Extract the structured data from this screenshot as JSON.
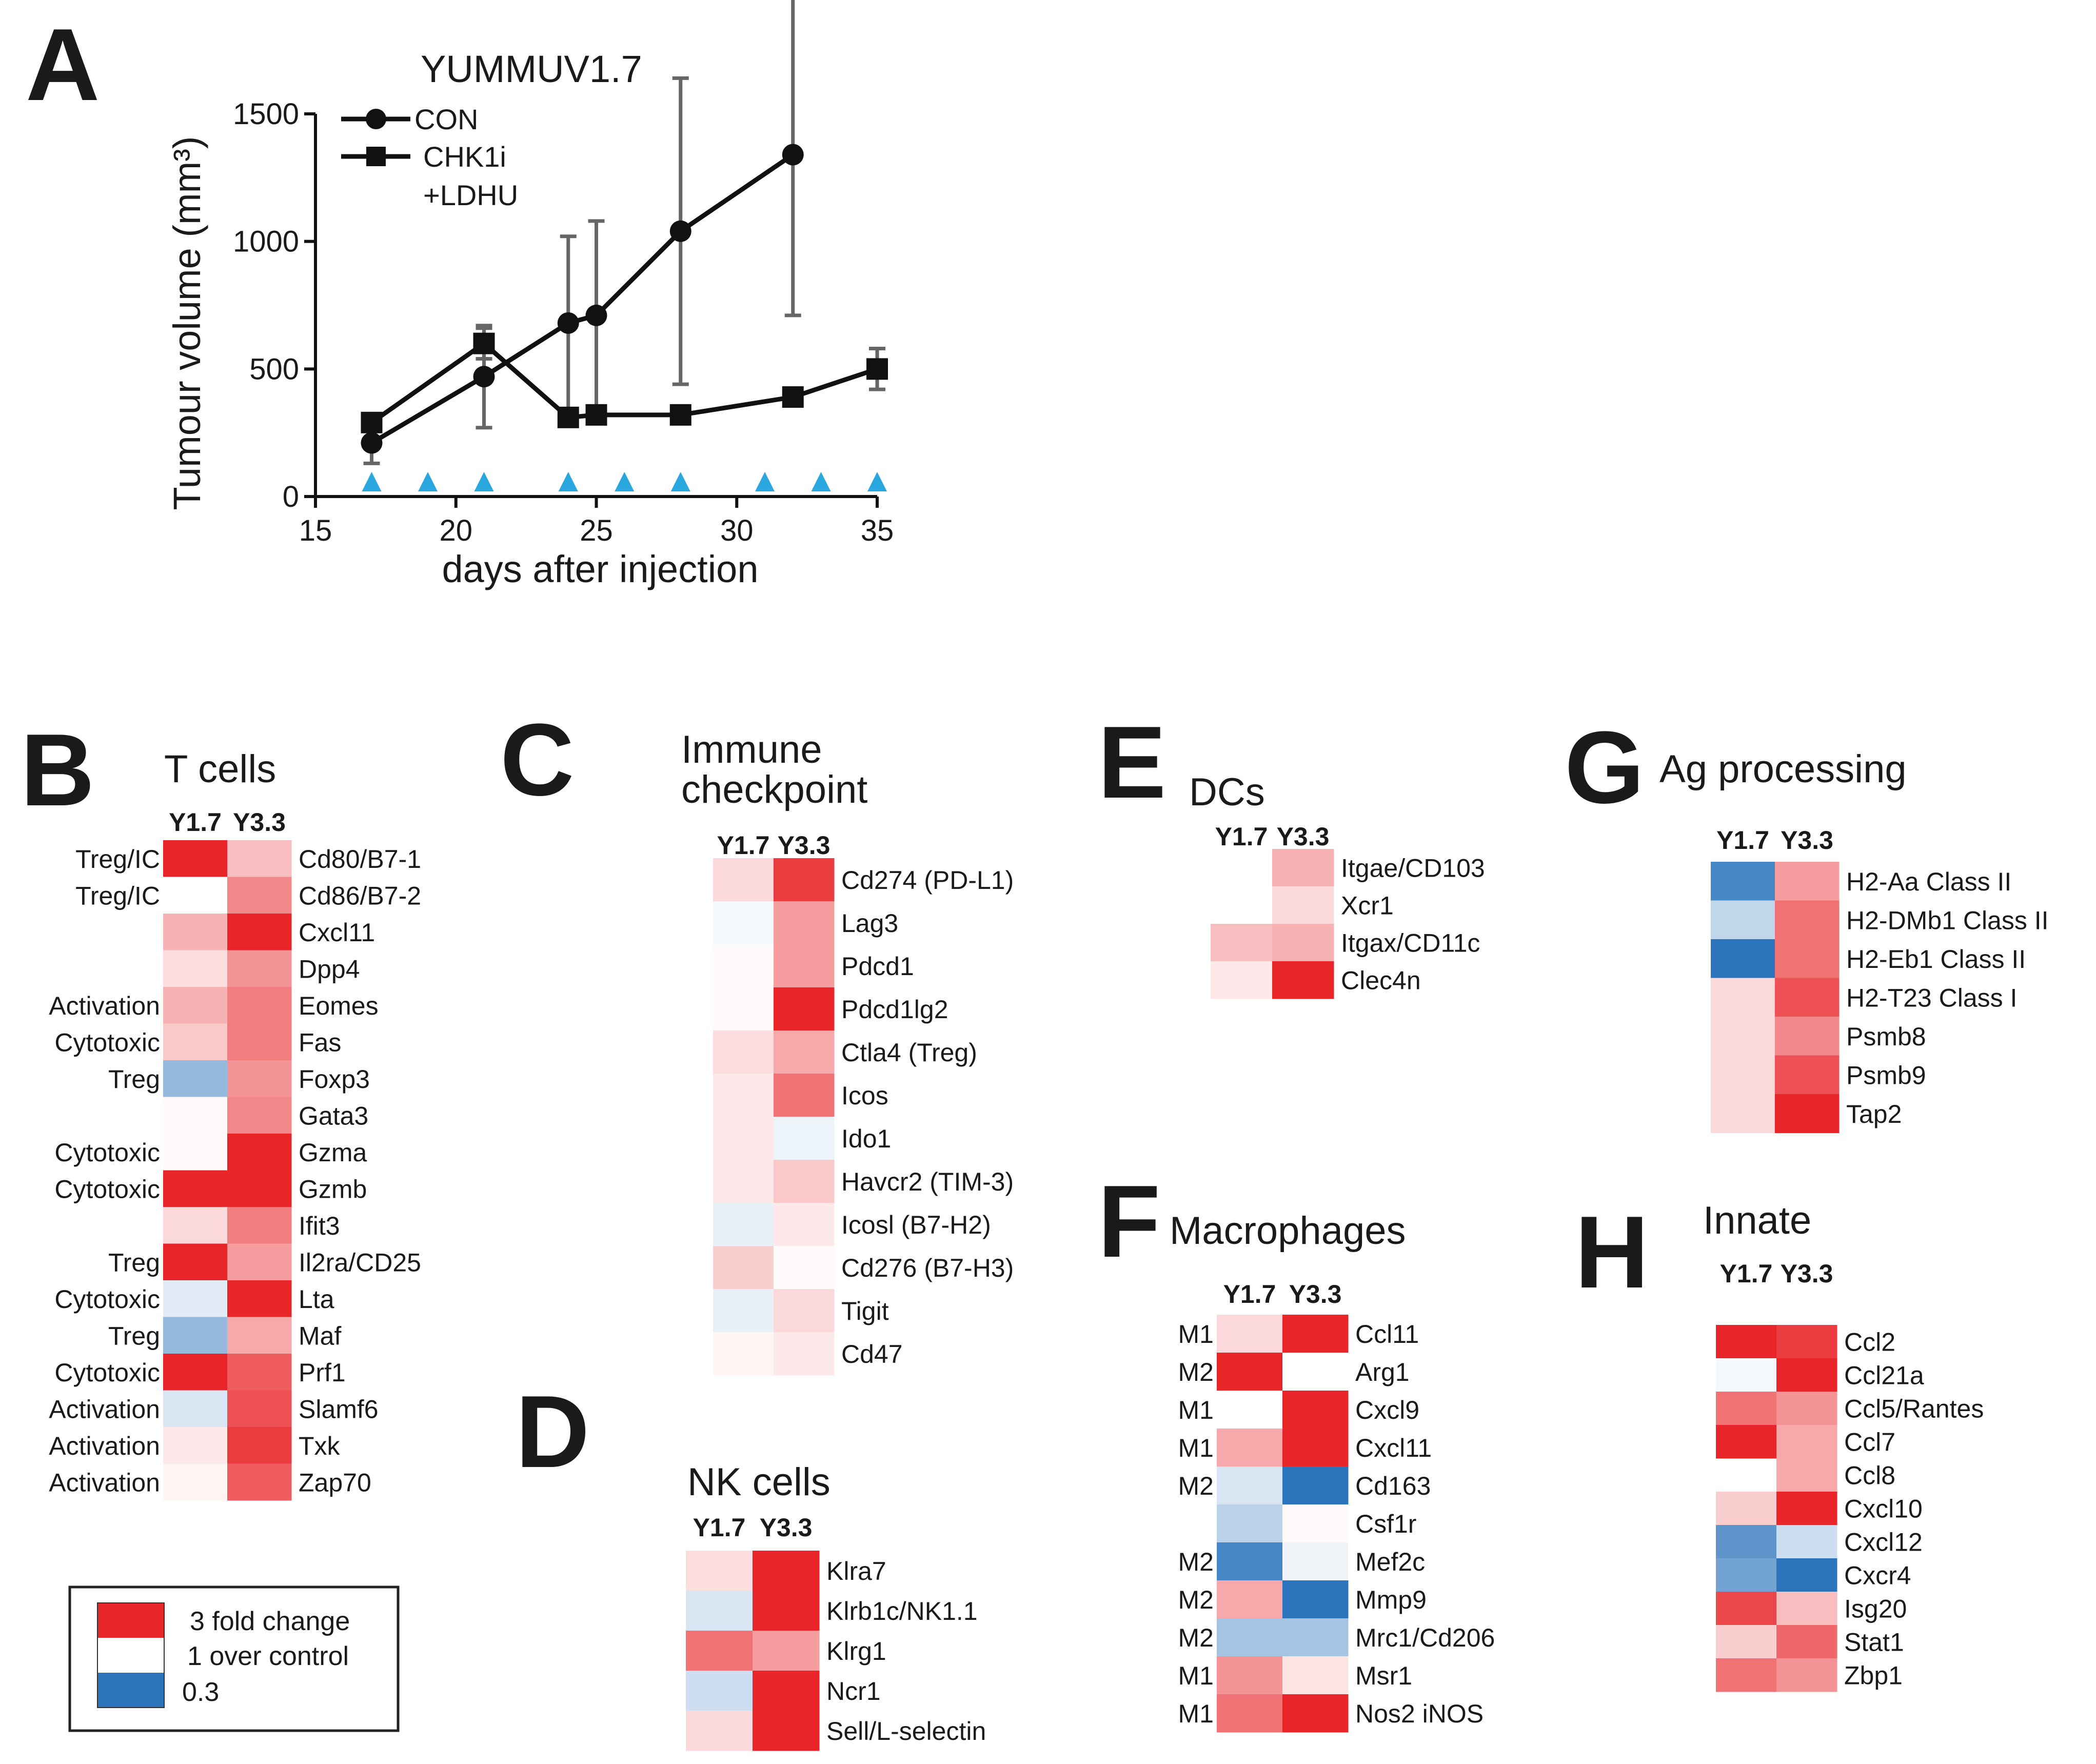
{
  "colors": {
    "red": "#e8262a",
    "white": "#ffffff",
    "blue": "#2b74bb",
    "series": "#111111",
    "error": "#666666",
    "dose": "#2aa7df"
  },
  "panelA": {
    "letter": "A",
    "chart_data": {
      "type": "line",
      "title": "YUMMUV1.7",
      "xlabel": "days after injection",
      "ylabel": "Tumour volume (mm³)",
      "xlim": [
        15,
        35
      ],
      "ylim": [
        0,
        1500
      ],
      "xticks": [
        15,
        20,
        25,
        30,
        35
      ],
      "yticks": [
        0,
        500,
        1000,
        1500
      ],
      "series": [
        {
          "name": "CON",
          "marker": "circle",
          "x": [
            17,
            21,
            24,
            25,
            28,
            32
          ],
          "y": [
            210,
            470,
            680,
            710,
            1040,
            1340
          ],
          "err": [
            80,
            200,
            340,
            370,
            600,
            630
          ]
        },
        {
          "name": "CHK1i",
          "name2": "+LDHU",
          "marker": "square",
          "x": [
            17,
            21,
            24,
            25,
            28,
            32,
            35
          ],
          "y": [
            290,
            600,
            310,
            320,
            320,
            390,
            500
          ],
          "err": [
            20,
            60,
            20,
            20,
            20,
            20,
            80
          ]
        }
      ],
      "dose_days": [
        17,
        19,
        21,
        24,
        26,
        28,
        31,
        33,
        35
      ]
    }
  },
  "legend": {
    "items": [
      "3 fold change",
      "1 over control",
      "0.3"
    ],
    "values": [
      3,
      1,
      0.3
    ]
  },
  "panelB": {
    "letter": "B",
    "title": "T cells",
    "cols": [
      "Y1.7",
      "Y3.3"
    ],
    "rows": [
      {
        "gene": "Cd80/B7-1",
        "cat": "Treg/IC",
        "v": [
          3,
          1.6
        ]
      },
      {
        "gene": "Cd86/B7-2",
        "cat": "Treg/IC",
        "v": [
          1,
          2.1
        ]
      },
      {
        "gene": "Cxcl11",
        "cat": "",
        "v": [
          1.7,
          3
        ]
      },
      {
        "gene": "Dpp4",
        "cat": "",
        "v": [
          1.3,
          2
        ]
      },
      {
        "gene": "Eomes",
        "cat": "Activation",
        "v": [
          1.7,
          2.2
        ]
      },
      {
        "gene": "Fas",
        "cat": "Cytotoxic",
        "v": [
          1.5,
          2.2
        ]
      },
      {
        "gene": "Foxp3",
        "cat": "Treg",
        "v": [
          0.55,
          2
        ]
      },
      {
        "gene": "Gata3",
        "cat": "",
        "v": [
          1.05,
          2.1
        ]
      },
      {
        "gene": "Gzma",
        "cat": "Cytotoxic",
        "v": [
          1.05,
          3
        ]
      },
      {
        "gene": "Gzmb",
        "cat": "Cytotoxic",
        "v": [
          3,
          3
        ]
      },
      {
        "gene": "Ifit3",
        "cat": "",
        "v": [
          1.35,
          2.2
        ]
      },
      {
        "gene": "Il2ra/CD25",
        "cat": "Treg",
        "v": [
          3,
          1.9
        ]
      },
      {
        "gene": "Lta",
        "cat": "Cytotoxic",
        "v": [
          0.85,
          3
        ]
      },
      {
        "gene": "Maf",
        "cat": "Treg",
        "v": [
          0.55,
          1.8
        ]
      },
      {
        "gene": "Prf1",
        "cat": "Cytotoxic",
        "v": [
          3,
          2.5
        ]
      },
      {
        "gene": "Slamf6",
        "cat": "Activation",
        "v": [
          0.8,
          2.6
        ]
      },
      {
        "gene": "Txk",
        "cat": "Activation",
        "v": [
          1.2,
          2.8
        ]
      },
      {
        "gene": "Zap70",
        "cat": "Activation",
        "v": [
          1.1,
          2.5
        ]
      }
    ]
  },
  "panelC": {
    "letter": "C",
    "title1": "Immune",
    "title2": "checkpoint",
    "cols": [
      "Y1.7",
      "Y3.3"
    ],
    "rows": [
      {
        "gene": "Cd274 (PD-L1)",
        "v": [
          1.35,
          2.8
        ]
      },
      {
        "gene": "Lag3",
        "v": [
          0.95,
          1.9
        ]
      },
      {
        "gene": "Pdcd1",
        "v": [
          1.05,
          1.9
        ]
      },
      {
        "gene": "Pdcd1lg2",
        "v": [
          1.05,
          3
        ]
      },
      {
        "gene": "Ctla4 (Treg)",
        "v": [
          1.3,
          1.8
        ]
      },
      {
        "gene": "Icos",
        "v": [
          1.2,
          2.3
        ]
      },
      {
        "gene": "Ido1",
        "v": [
          1.2,
          0.9
        ]
      },
      {
        "gene": "Havcr2 (TIM-3)",
        "v": [
          1.2,
          1.5
        ]
      },
      {
        "gene": "Icosl (B7-H2)",
        "v": [
          0.88,
          1.2
        ]
      },
      {
        "gene": "Cd276 (B7-H3)",
        "v": [
          1.45,
          1.05
        ]
      },
      {
        "gene": "Tigit",
        "v": [
          0.88,
          1.35
        ]
      },
      {
        "gene": "Cd47",
        "v": [
          1.1,
          1.2
        ]
      }
    ]
  },
  "panelD": {
    "letter": "D",
    "title": "NK cells",
    "cols": [
      "Y1.7",
      "Y3.3"
    ],
    "rows": [
      {
        "gene": "Klra7",
        "v": [
          1.3,
          3
        ]
      },
      {
        "gene": "Klrb1c/NK1.1",
        "v": [
          0.8,
          3
        ]
      },
      {
        "gene": "Klrg1",
        "v": [
          2.3,
          1.9
        ]
      },
      {
        "gene": "Ncr1",
        "v": [
          0.75,
          3
        ]
      },
      {
        "gene": "Sell/L-selectin",
        "v": [
          1.35,
          3
        ]
      }
    ]
  },
  "panelE": {
    "letter": "E",
    "title": "DCs",
    "cols": [
      "Y1.7",
      "Y3.3"
    ],
    "rows": [
      {
        "gene": "Itgae/CD103",
        "v": [
          null,
          1.7
        ]
      },
      {
        "gene": "Xcr1",
        "v": [
          null,
          1.35
        ]
      },
      {
        "gene": "Itgax/CD11c",
        "v": [
          1.6,
          1.7
        ]
      },
      {
        "gene": "Clec4n",
        "v": [
          1.2,
          3
        ]
      }
    ]
  },
  "panelF": {
    "letter": "F",
    "title": "Macrophages",
    "cols": [
      "Y1.7",
      "Y3.3"
    ],
    "rows": [
      {
        "gene": "Ccl11",
        "cat": "M1",
        "v": [
          1.35,
          3
        ]
      },
      {
        "gene": "Arg1",
        "cat": "M2",
        "v": [
          3,
          1
        ]
      },
      {
        "gene": "Cxcl9",
        "cat": "M1",
        "v": [
          1,
          3
        ]
      },
      {
        "gene": "Cxcl11",
        "cat": "M1",
        "v": [
          1.8,
          3
        ]
      },
      {
        "gene": "Cd163",
        "cat": "M2",
        "v": [
          0.8,
          0.3
        ]
      },
      {
        "gene": "Csf1r",
        "cat": "",
        "v": [
          0.68,
          1.05
        ]
      },
      {
        "gene": "Mef2c",
        "cat": "M2",
        "v": [
          0.35,
          0.92
        ]
      },
      {
        "gene": "Mmp9",
        "cat": "M2",
        "v": [
          1.8,
          0.3
        ]
      },
      {
        "gene": "Mrc1/Cd206",
        "cat": "M2",
        "v": [
          0.6,
          0.6
        ]
      },
      {
        "gene": "Msr1",
        "cat": "M1",
        "v": [
          2,
          1.25
        ]
      },
      {
        "gene": "Nos2 iNOS",
        "cat": "M1",
        "v": [
          2.3,
          3
        ]
      }
    ]
  },
  "panelG": {
    "letter": "G",
    "title": "Ag processing",
    "cols": [
      "Y1.7",
      "Y3.3"
    ],
    "rows": [
      {
        "gene": "H2-Aa Class II",
        "v": [
          0.35,
          1.9
        ]
      },
      {
        "gene": "H2-DMb1 Class II",
        "v": [
          0.7,
          2.3
        ]
      },
      {
        "gene": "H2-Eb1 Class II",
        "v": [
          0.3,
          2.3
        ]
      },
      {
        "gene": "H2-T23 Class I",
        "v": [
          1.35,
          2.6
        ]
      },
      {
        "gene": "Psmb8",
        "v": [
          1.35,
          2.1
        ]
      },
      {
        "gene": "Psmb9",
        "v": [
          1.35,
          2.6
        ]
      },
      {
        "gene": "Tap2",
        "v": [
          1.35,
          3
        ]
      }
    ]
  },
  "panelH": {
    "letter": "H",
    "title": "Innate",
    "cols": [
      "Y1.7",
      "Y3.3"
    ],
    "rows": [
      {
        "gene": "Ccl2",
        "v": [
          3,
          2.8
        ]
      },
      {
        "gene": "Ccl21a",
        "v": [
          0.95,
          3
        ]
      },
      {
        "gene": "Ccl5/Rantes",
        "v": [
          2.3,
          2
        ]
      },
      {
        "gene": "Ccl7",
        "v": [
          3,
          1.8
        ]
      },
      {
        "gene": "Ccl8",
        "v": [
          null,
          1.8
        ]
      },
      {
        "gene": "Cxcl10",
        "v": [
          1.45,
          3
        ]
      },
      {
        "gene": "Cxcl12",
        "v": [
          0.4,
          0.75
        ]
      },
      {
        "gene": "Cxcr4",
        "v": [
          0.45,
          0.3
        ]
      },
      {
        "gene": "Isg20",
        "v": [
          2.7,
          1.6
        ]
      },
      {
        "gene": "Stat1",
        "v": [
          1.45,
          2.4
        ]
      },
      {
        "gene": "Zbp1",
        "v": [
          2.3,
          2
        ]
      }
    ]
  }
}
